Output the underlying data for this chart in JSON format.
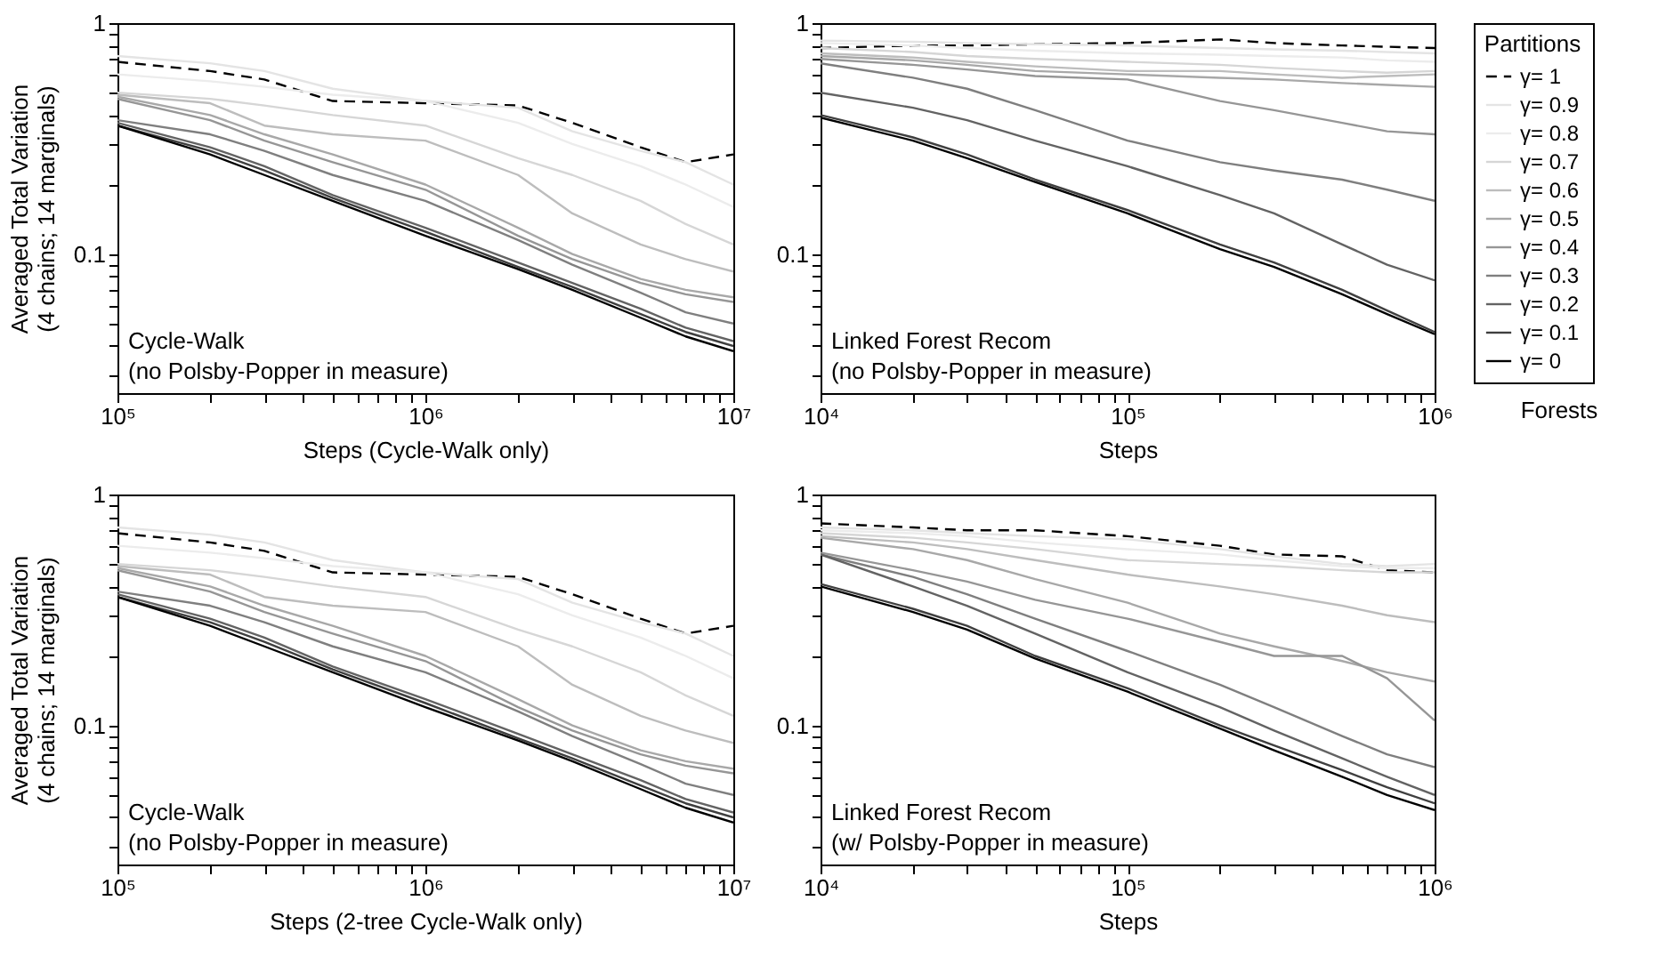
{
  "chart_data": [
    {
      "type": "line",
      "xlabel": "Steps (Cycle-Walk only)",
      "ylabel": "Averaged Total Variation\n(4 chains; 14 marginals)",
      "log": "xy",
      "xlim": [
        100000,
        10000000
      ],
      "ylim": [
        0.025,
        1
      ],
      "xticks": [
        {
          "value": 100000,
          "label": "10⁵"
        },
        {
          "value": 200000,
          "label": null
        },
        {
          "value": 300000,
          "label": null
        },
        {
          "value": 400000,
          "label": null
        },
        {
          "value": 500000,
          "label": null
        },
        {
          "value": 600000,
          "label": null
        },
        {
          "value": 700000,
          "label": null
        },
        {
          "value": 800000,
          "label": null
        },
        {
          "value": 900000,
          "label": null
        },
        {
          "value": 1000000,
          "label": "10⁶"
        },
        {
          "value": 2000000,
          "label": null
        },
        {
          "value": 3000000,
          "label": null
        },
        {
          "value": 4000000,
          "label": null
        },
        {
          "value": 5000000,
          "label": null
        },
        {
          "value": 6000000,
          "label": null
        },
        {
          "value": 7000000,
          "label": null
        },
        {
          "value": 8000000,
          "label": null
        },
        {
          "value": 9000000,
          "label": null
        },
        {
          "value": 10000000,
          "label": "10⁷"
        }
      ],
      "yticks": [
        {
          "value": 0.03,
          "label": null
        },
        {
          "value": 0.04,
          "label": null
        },
        {
          "value": 0.05,
          "label": null
        },
        {
          "value": 0.06,
          "label": null
        },
        {
          "value": 0.07,
          "label": null
        },
        {
          "value": 0.08,
          "label": null
        },
        {
          "value": 0.09,
          "label": null
        },
        {
          "value": 0.1,
          "label": "0.1"
        },
        {
          "value": 0.2,
          "label": null
        },
        {
          "value": 0.3,
          "label": null
        },
        {
          "value": 0.4,
          "label": null
        },
        {
          "value": 0.5,
          "label": null
        },
        {
          "value": 0.6,
          "label": null
        },
        {
          "value": 0.7,
          "label": null
        },
        {
          "value": 0.8,
          "label": null
        },
        {
          "value": 0.9,
          "label": null
        },
        {
          "value": 1,
          "label": "1"
        }
      ],
      "annotations": [
        "Cycle-Walk",
        "(no Polsby-Popper in measure)"
      ],
      "x": [
        100000,
        200000,
        300000,
        500000,
        1000000,
        2000000,
        3000000,
        5000000,
        7000000,
        10000000
      ],
      "series": [
        {
          "color": "#000000",
          "line_style": "dashed",
          "values": [
            0.68,
            0.62,
            0.57,
            0.46,
            0.45,
            0.44,
            0.37,
            0.29,
            0.25,
            0.27
          ]
        },
        {
          "color": "#e4e4e4",
          "line_style": "solid",
          "values": [
            0.72,
            0.67,
            0.62,
            0.52,
            0.46,
            0.43,
            0.34,
            0.28,
            0.25,
            0.2
          ]
        },
        {
          "color": "#ececec",
          "line_style": "solid",
          "values": [
            0.6,
            0.56,
            0.53,
            0.49,
            0.46,
            0.37,
            0.3,
            0.24,
            0.2,
            0.16
          ]
        },
        {
          "color": "#d6d6d6",
          "line_style": "solid",
          "values": [
            0.5,
            0.47,
            0.44,
            0.4,
            0.36,
            0.26,
            0.22,
            0.17,
            0.135,
            0.11
          ]
        },
        {
          "color": "#bdbdbd",
          "line_style": "solid",
          "values": [
            0.49,
            0.45,
            0.36,
            0.33,
            0.31,
            0.22,
            0.15,
            0.11,
            0.095,
            0.084
          ]
        },
        {
          "color": "#a8a8a8",
          "line_style": "solid",
          "values": [
            0.48,
            0.4,
            0.33,
            0.27,
            0.2,
            0.13,
            0.1,
            0.078,
            0.07,
            0.065
          ]
        },
        {
          "color": "#969696",
          "line_style": "solid",
          "values": [
            0.47,
            0.38,
            0.31,
            0.25,
            0.19,
            0.12,
            0.095,
            0.075,
            0.067,
            0.062
          ]
        },
        {
          "color": "#7f7f7f",
          "line_style": "solid",
          "values": [
            0.38,
            0.33,
            0.28,
            0.22,
            0.17,
            0.115,
            0.09,
            0.068,
            0.056,
            0.05
          ]
        },
        {
          "color": "#636363",
          "line_style": "solid",
          "values": [
            0.37,
            0.29,
            0.24,
            0.18,
            0.13,
            0.092,
            0.075,
            0.058,
            0.048,
            0.042
          ]
        },
        {
          "color": "#3f3f3f",
          "line_style": "solid",
          "values": [
            0.36,
            0.28,
            0.23,
            0.175,
            0.125,
            0.088,
            0.072,
            0.055,
            0.046,
            0.04
          ]
        },
        {
          "color": "#000000",
          "line_style": "solid",
          "values": [
            0.36,
            0.27,
            0.22,
            0.17,
            0.12,
            0.086,
            0.07,
            0.053,
            0.044,
            0.038
          ]
        }
      ]
    },
    {
      "type": "line",
      "xlabel": "Steps",
      "log": "xy",
      "xlim": [
        10000,
        1000000
      ],
      "ylim": [
        0.025,
        1
      ],
      "legend": "right",
      "legend_title": "Partitions",
      "xticks": [
        {
          "value": 10000,
          "label": "10⁴"
        },
        {
          "value": 20000,
          "label": null
        },
        {
          "value": 30000,
          "label": null
        },
        {
          "value": 40000,
          "label": null
        },
        {
          "value": 50000,
          "label": null
        },
        {
          "value": 60000,
          "label": null
        },
        {
          "value": 70000,
          "label": null
        },
        {
          "value": 80000,
          "label": null
        },
        {
          "value": 90000,
          "label": null
        },
        {
          "value": 100000,
          "label": "10⁵"
        },
        {
          "value": 200000,
          "label": null
        },
        {
          "value": 300000,
          "label": null
        },
        {
          "value": 400000,
          "label": null
        },
        {
          "value": 500000,
          "label": null
        },
        {
          "value": 600000,
          "label": null
        },
        {
          "value": 700000,
          "label": null
        },
        {
          "value": 800000,
          "label": null
        },
        {
          "value": 900000,
          "label": null
        },
        {
          "value": 1000000,
          "label": "10⁶"
        }
      ],
      "yticks": [
        {
          "value": 0.03,
          "label": null
        },
        {
          "value": 0.04,
          "label": null
        },
        {
          "value": 0.05,
          "label": null
        },
        {
          "value": 0.06,
          "label": null
        },
        {
          "value": 0.07,
          "label": null
        },
        {
          "value": 0.08,
          "label": null
        },
        {
          "value": 0.09,
          "label": null
        },
        {
          "value": 0.1,
          "label": "0.1"
        },
        {
          "value": 0.2,
          "label": null
        },
        {
          "value": 0.3,
          "label": null
        },
        {
          "value": 0.4,
          "label": null
        },
        {
          "value": 0.5,
          "label": null
        },
        {
          "value": 0.6,
          "label": null
        },
        {
          "value": 0.7,
          "label": null
        },
        {
          "value": 0.8,
          "label": null
        },
        {
          "value": 0.9,
          "label": null
        },
        {
          "value": 1,
          "label": "1"
        }
      ],
      "annotations": [
        "Linked Forest Recom",
        "(no Polsby-Popper in measure)",
        "Forests"
      ],
      "x": [
        10000,
        20000,
        30000,
        50000,
        100000,
        200000,
        300000,
        500000,
        700000,
        1000000
      ],
      "series": [
        {
          "name": "γ= 1",
          "color": "#000000",
          "line_style": "dashed",
          "values": [
            0.78,
            0.8,
            0.8,
            0.81,
            0.82,
            0.85,
            0.82,
            0.8,
            0.79,
            0.78
          ]
        },
        {
          "name": "γ= 0.9",
          "color": "#e4e4e4",
          "line_style": "solid",
          "values": [
            0.84,
            0.83,
            0.82,
            0.81,
            0.8,
            0.78,
            0.77,
            0.76,
            0.75,
            0.74
          ]
        },
        {
          "name": "γ= 0.8",
          "color": "#ececec",
          "line_style": "solid",
          "values": [
            0.82,
            0.8,
            0.78,
            0.76,
            0.74,
            0.73,
            0.72,
            0.71,
            0.69,
            0.68
          ]
        },
        {
          "name": "γ= 0.7",
          "color": "#d6d6d6",
          "line_style": "solid",
          "values": [
            0.78,
            0.75,
            0.72,
            0.7,
            0.68,
            0.66,
            0.64,
            0.62,
            0.61,
            0.62
          ]
        },
        {
          "name": "γ= 0.6",
          "color": "#bdbdbd",
          "line_style": "solid",
          "values": [
            0.74,
            0.71,
            0.68,
            0.65,
            0.62,
            0.62,
            0.6,
            0.58,
            0.59,
            0.6
          ]
        },
        {
          "name": "γ= 0.5",
          "color": "#a8a8a8",
          "line_style": "solid",
          "values": [
            0.72,
            0.69,
            0.66,
            0.62,
            0.6,
            0.58,
            0.57,
            0.55,
            0.54,
            0.53
          ]
        },
        {
          "name": "γ= 0.4",
          "color": "#969696",
          "line_style": "solid",
          "values": [
            0.7,
            0.66,
            0.63,
            0.59,
            0.57,
            0.46,
            0.42,
            0.37,
            0.34,
            0.33
          ]
        },
        {
          "name": "γ= 0.3",
          "color": "#7f7f7f",
          "line_style": "solid",
          "values": [
            0.67,
            0.58,
            0.52,
            0.42,
            0.31,
            0.25,
            0.23,
            0.21,
            0.19,
            0.17
          ]
        },
        {
          "name": "γ= 0.2",
          "color": "#636363",
          "line_style": "solid",
          "values": [
            0.5,
            0.43,
            0.38,
            0.31,
            0.24,
            0.18,
            0.15,
            0.11,
            0.09,
            0.077
          ]
        },
        {
          "name": "γ= 0.1",
          "color": "#3f3f3f",
          "line_style": "solid",
          "values": [
            0.4,
            0.32,
            0.27,
            0.21,
            0.155,
            0.11,
            0.092,
            0.07,
            0.057,
            0.046
          ]
        },
        {
          "name": "γ= 0",
          "color": "#000000",
          "line_style": "solid",
          "values": [
            0.39,
            0.31,
            0.26,
            0.205,
            0.15,
            0.105,
            0.088,
            0.067,
            0.055,
            0.045
          ]
        }
      ]
    },
    {
      "type": "line",
      "xlabel": "Steps (2-tree Cycle-Walk only)",
      "ylabel": "Averaged Total Variation\n(4 chains; 14 marginals)",
      "log": "xy",
      "xlim": [
        100000,
        10000000
      ],
      "ylim": [
        0.025,
        1
      ],
      "xticks": [
        {
          "value": 100000,
          "label": "10⁵"
        },
        {
          "value": 200000,
          "label": null
        },
        {
          "value": 300000,
          "label": null
        },
        {
          "value": 400000,
          "label": null
        },
        {
          "value": 500000,
          "label": null
        },
        {
          "value": 600000,
          "label": null
        },
        {
          "value": 700000,
          "label": null
        },
        {
          "value": 800000,
          "label": null
        },
        {
          "value": 900000,
          "label": null
        },
        {
          "value": 1000000,
          "label": "10⁶"
        },
        {
          "value": 2000000,
          "label": null
        },
        {
          "value": 3000000,
          "label": null
        },
        {
          "value": 4000000,
          "label": null
        },
        {
          "value": 5000000,
          "label": null
        },
        {
          "value": 6000000,
          "label": null
        },
        {
          "value": 7000000,
          "label": null
        },
        {
          "value": 8000000,
          "label": null
        },
        {
          "value": 9000000,
          "label": null
        },
        {
          "value": 10000000,
          "label": "10⁷"
        }
      ],
      "yticks": [
        {
          "value": 0.03,
          "label": null
        },
        {
          "value": 0.04,
          "label": null
        },
        {
          "value": 0.05,
          "label": null
        },
        {
          "value": 0.06,
          "label": null
        },
        {
          "value": 0.07,
          "label": null
        },
        {
          "value": 0.08,
          "label": null
        },
        {
          "value": 0.09,
          "label": null
        },
        {
          "value": 0.1,
          "label": "0.1"
        },
        {
          "value": 0.2,
          "label": null
        },
        {
          "value": 0.3,
          "label": null
        },
        {
          "value": 0.4,
          "label": null
        },
        {
          "value": 0.5,
          "label": null
        },
        {
          "value": 0.6,
          "label": null
        },
        {
          "value": 0.7,
          "label": null
        },
        {
          "value": 0.8,
          "label": null
        },
        {
          "value": 0.9,
          "label": null
        },
        {
          "value": 1,
          "label": "1"
        }
      ],
      "annotations": [
        "Cycle-Walk",
        "(no Polsby-Popper in measure)"
      ],
      "x": [
        100000,
        200000,
        300000,
        500000,
        1000000,
        2000000,
        3000000,
        5000000,
        7000000,
        10000000
      ],
      "series": [
        {
          "color": "#000000",
          "line_style": "dashed",
          "values": [
            0.68,
            0.62,
            0.57,
            0.46,
            0.45,
            0.44,
            0.37,
            0.29,
            0.25,
            0.27
          ]
        },
        {
          "color": "#e4e4e4",
          "line_style": "solid",
          "values": [
            0.72,
            0.67,
            0.62,
            0.52,
            0.46,
            0.43,
            0.34,
            0.28,
            0.25,
            0.2
          ]
        },
        {
          "color": "#ececec",
          "line_style": "solid",
          "values": [
            0.6,
            0.56,
            0.53,
            0.49,
            0.46,
            0.37,
            0.3,
            0.24,
            0.2,
            0.16
          ]
        },
        {
          "color": "#d6d6d6",
          "line_style": "solid",
          "values": [
            0.5,
            0.47,
            0.44,
            0.4,
            0.36,
            0.26,
            0.22,
            0.17,
            0.135,
            0.11
          ]
        },
        {
          "color": "#bdbdbd",
          "line_style": "solid",
          "values": [
            0.49,
            0.45,
            0.36,
            0.33,
            0.31,
            0.22,
            0.15,
            0.11,
            0.095,
            0.084
          ]
        },
        {
          "color": "#a8a8a8",
          "line_style": "solid",
          "values": [
            0.48,
            0.4,
            0.33,
            0.27,
            0.2,
            0.13,
            0.1,
            0.078,
            0.07,
            0.065
          ]
        },
        {
          "color": "#969696",
          "line_style": "solid",
          "values": [
            0.47,
            0.38,
            0.31,
            0.25,
            0.19,
            0.12,
            0.095,
            0.075,
            0.067,
            0.062
          ]
        },
        {
          "color": "#7f7f7f",
          "line_style": "solid",
          "values": [
            0.38,
            0.33,
            0.28,
            0.22,
            0.17,
            0.115,
            0.09,
            0.068,
            0.056,
            0.05
          ]
        },
        {
          "color": "#636363",
          "line_style": "solid",
          "values": [
            0.37,
            0.29,
            0.24,
            0.18,
            0.13,
            0.092,
            0.075,
            0.058,
            0.048,
            0.042
          ]
        },
        {
          "color": "#3f3f3f",
          "line_style": "solid",
          "values": [
            0.36,
            0.28,
            0.23,
            0.175,
            0.125,
            0.088,
            0.072,
            0.055,
            0.046,
            0.04
          ]
        },
        {
          "color": "#000000",
          "line_style": "solid",
          "values": [
            0.36,
            0.27,
            0.22,
            0.17,
            0.12,
            0.086,
            0.07,
            0.053,
            0.044,
            0.038
          ]
        }
      ]
    },
    {
      "type": "line",
      "xlabel": "Steps",
      "log": "xy",
      "xlim": [
        10000,
        1000000
      ],
      "ylim": [
        0.025,
        1
      ],
      "xticks": [
        {
          "value": 10000,
          "label": "10⁴"
        },
        {
          "value": 20000,
          "label": null
        },
        {
          "value": 30000,
          "label": null
        },
        {
          "value": 40000,
          "label": null
        },
        {
          "value": 50000,
          "label": null
        },
        {
          "value": 60000,
          "label": null
        },
        {
          "value": 70000,
          "label": null
        },
        {
          "value": 80000,
          "label": null
        },
        {
          "value": 90000,
          "label": null
        },
        {
          "value": 100000,
          "label": "10⁵"
        },
        {
          "value": 200000,
          "label": null
        },
        {
          "value": 300000,
          "label": null
        },
        {
          "value": 400000,
          "label": null
        },
        {
          "value": 500000,
          "label": null
        },
        {
          "value": 600000,
          "label": null
        },
        {
          "value": 700000,
          "label": null
        },
        {
          "value": 800000,
          "label": null
        },
        {
          "value": 900000,
          "label": null
        },
        {
          "value": 1000000,
          "label": "10⁶"
        }
      ],
      "yticks": [
        {
          "value": 0.03,
          "label": null
        },
        {
          "value": 0.04,
          "label": null
        },
        {
          "value": 0.05,
          "label": null
        },
        {
          "value": 0.06,
          "label": null
        },
        {
          "value": 0.07,
          "label": null
        },
        {
          "value": 0.08,
          "label": null
        },
        {
          "value": 0.09,
          "label": null
        },
        {
          "value": 0.1,
          "label": "0.1"
        },
        {
          "value": 0.2,
          "label": null
        },
        {
          "value": 0.3,
          "label": null
        },
        {
          "value": 0.4,
          "label": null
        },
        {
          "value": 0.5,
          "label": null
        },
        {
          "value": 0.6,
          "label": null
        },
        {
          "value": 0.7,
          "label": null
        },
        {
          "value": 0.8,
          "label": null
        },
        {
          "value": 0.9,
          "label": null
        },
        {
          "value": 1,
          "label": "1"
        }
      ],
      "annotations": [
        "Linked Forest Recom",
        "(w/ Polsby-Popper in measure)"
      ],
      "x": [
        10000,
        20000,
        30000,
        50000,
        100000,
        200000,
        300000,
        500000,
        700000,
        1000000
      ],
      "series": [
        {
          "color": "#000000",
          "line_style": "dashed",
          "values": [
            0.75,
            0.72,
            0.7,
            0.7,
            0.66,
            0.6,
            0.55,
            0.54,
            0.47,
            0.46
          ]
        },
        {
          "color": "#e4e4e4",
          "line_style": "solid",
          "values": [
            0.72,
            0.7,
            0.68,
            0.66,
            0.64,
            0.58,
            0.54,
            0.5,
            0.49,
            0.5
          ]
        },
        {
          "color": "#ececec",
          "line_style": "solid",
          "values": [
            0.7,
            0.68,
            0.66,
            0.62,
            0.58,
            0.55,
            0.52,
            0.49,
            0.48,
            0.48
          ]
        },
        {
          "color": "#d6d6d6",
          "line_style": "solid",
          "values": [
            0.68,
            0.65,
            0.62,
            0.58,
            0.52,
            0.5,
            0.49,
            0.47,
            0.46,
            0.46
          ]
        },
        {
          "color": "#bdbdbd",
          "line_style": "solid",
          "values": [
            0.66,
            0.62,
            0.58,
            0.52,
            0.45,
            0.4,
            0.37,
            0.33,
            0.3,
            0.28
          ]
        },
        {
          "color": "#a8a8a8",
          "line_style": "solid",
          "values": [
            0.65,
            0.58,
            0.52,
            0.43,
            0.34,
            0.25,
            0.22,
            0.19,
            0.17,
            0.155
          ]
        },
        {
          "color": "#969696",
          "line_style": "solid",
          "values": [
            0.56,
            0.47,
            0.42,
            0.35,
            0.29,
            0.23,
            0.2,
            0.2,
            0.16,
            0.105
          ]
        },
        {
          "color": "#7f7f7f",
          "line_style": "solid",
          "values": [
            0.55,
            0.44,
            0.37,
            0.29,
            0.21,
            0.15,
            0.12,
            0.09,
            0.075,
            0.066
          ]
        },
        {
          "color": "#636363",
          "line_style": "solid",
          "values": [
            0.55,
            0.4,
            0.33,
            0.25,
            0.17,
            0.12,
            0.095,
            0.072,
            0.06,
            0.05
          ]
        },
        {
          "color": "#3f3f3f",
          "line_style": "solid",
          "values": [
            0.41,
            0.32,
            0.27,
            0.2,
            0.145,
            0.1,
            0.082,
            0.064,
            0.054,
            0.046
          ]
        },
        {
          "color": "#000000",
          "line_style": "solid",
          "values": [
            0.4,
            0.31,
            0.26,
            0.195,
            0.14,
            0.097,
            0.078,
            0.06,
            0.05,
            0.043
          ]
        }
      ]
    }
  ]
}
